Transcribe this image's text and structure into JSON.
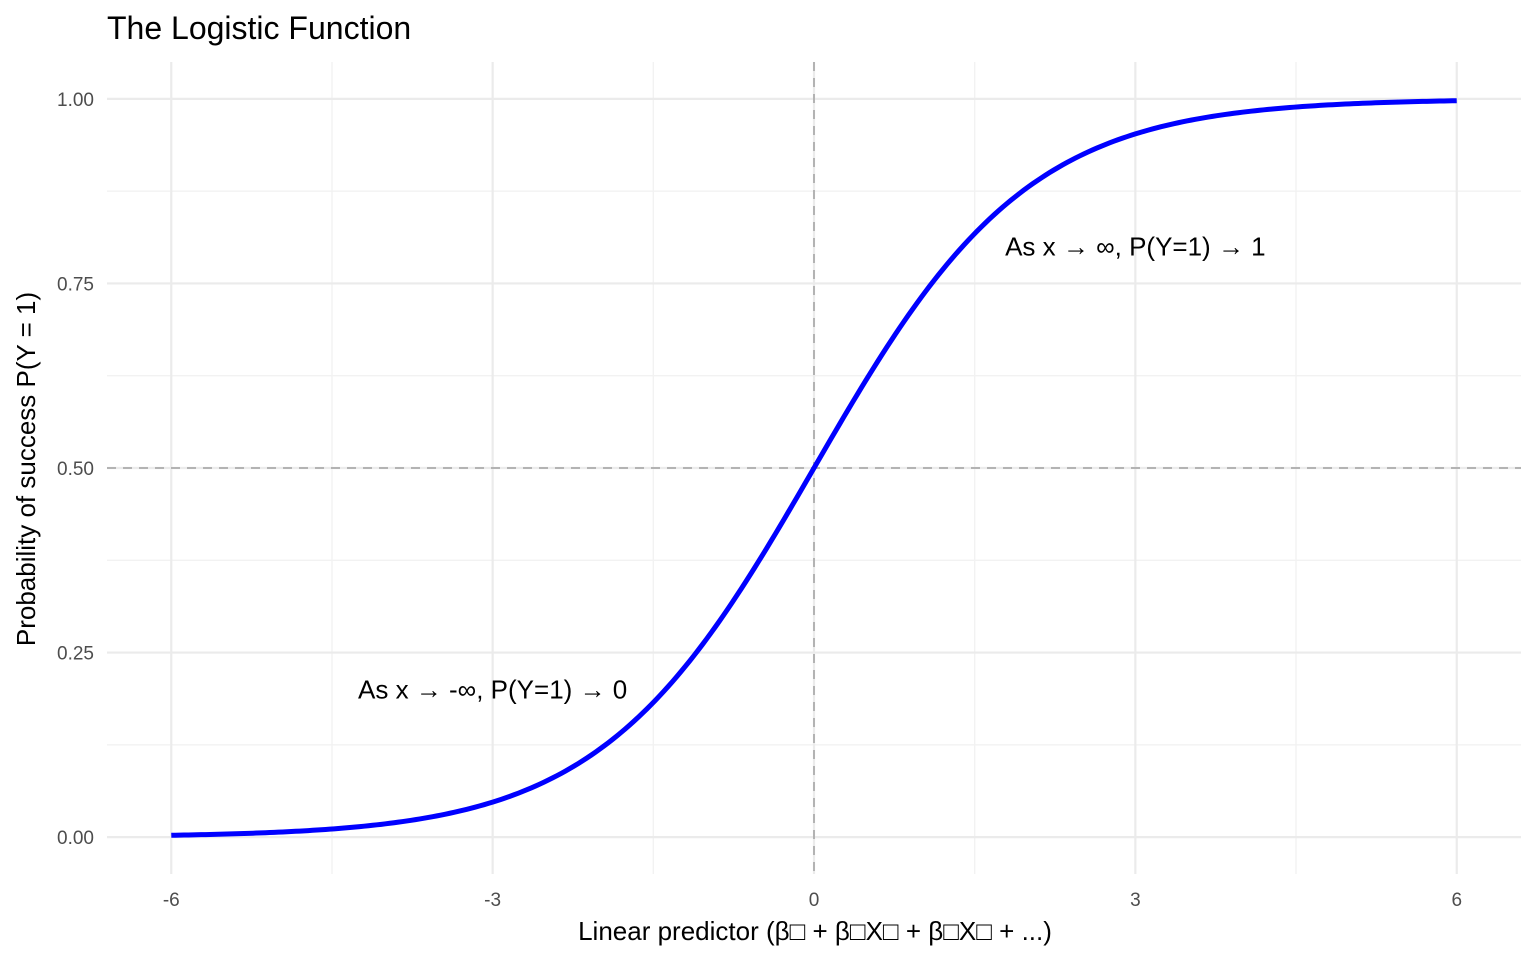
{
  "chart_data": {
    "type": "line",
    "title": "The Logistic Function",
    "xlabel": "Linear predictor (β□ + β□X□ + β□X□ + ...)",
    "ylabel": "Probability of success P(Y = 1)",
    "xlim": [
      -6.6,
      6.6
    ],
    "ylim": [
      -0.05,
      1.05
    ],
    "x_ticks": [
      -6,
      -3,
      0,
      3,
      6
    ],
    "x_tick_labels": [
      "-6",
      "-3",
      "0",
      "3",
      "6"
    ],
    "y_ticks": [
      0,
      0.25,
      0.5,
      0.75,
      1
    ],
    "y_tick_labels": [
      "0.00",
      "0.25",
      "0.50",
      "0.75",
      "1.00"
    ],
    "grid": true,
    "series": [
      {
        "function": "1 / (1 + exp(-x))",
        "color": "#0000ff",
        "x": [
          -6,
          -5,
          -4,
          -3,
          -2.5,
          -2,
          -1.5,
          -1,
          -0.5,
          0,
          0.5,
          1,
          1.5,
          2,
          2.5,
          3,
          4,
          5,
          6
        ],
        "y": [
          0.0025,
          0.0067,
          0.018,
          0.047,
          0.076,
          0.119,
          0.182,
          0.269,
          0.378,
          0.5,
          0.622,
          0.731,
          0.818,
          0.881,
          0.924,
          0.953,
          0.982,
          0.9933,
          0.9975
        ]
      }
    ],
    "reference_lines": [
      {
        "orientation": "vertical",
        "value": 0,
        "style": "dashed",
        "color": "#b3b3b3"
      },
      {
        "orientation": "horizontal",
        "value": 0.5,
        "style": "dashed",
        "color": "#b3b3b3"
      }
    ],
    "annotations": [
      {
        "text": "As x → ∞, P(Y=1) → 1",
        "x": 3,
        "y": 0.8
      },
      {
        "text": "As x → -∞, P(Y=1) → 0",
        "x": -3,
        "y": 0.2
      }
    ]
  }
}
